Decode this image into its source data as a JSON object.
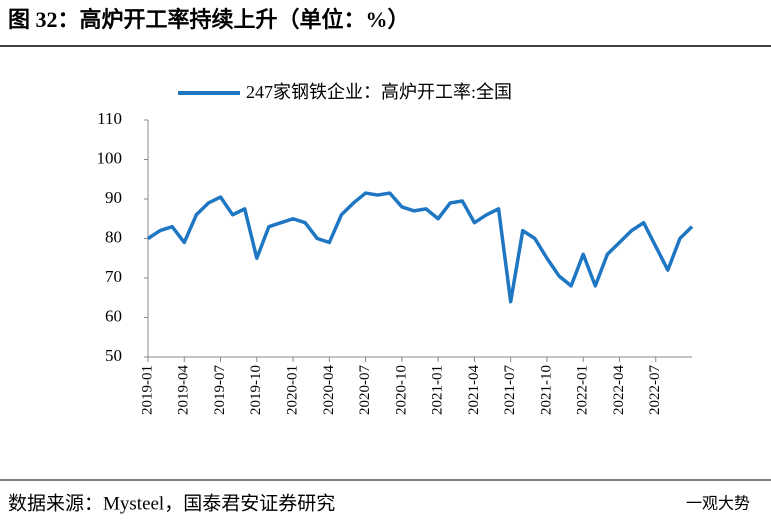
{
  "header": {
    "title": "图 32：高炉开工率持续上升（单位：%）"
  },
  "chart_data": {
    "type": "line",
    "x": [
      "2019-01",
      null,
      null,
      "2019-04",
      null,
      null,
      "2019-07",
      null,
      null,
      "2019-10",
      null,
      null,
      "2020-01",
      null,
      null,
      "2020-04",
      null,
      null,
      "2020-07",
      null,
      null,
      "2020-10",
      null,
      null,
      "2021-01",
      null,
      null,
      "2021-04",
      null,
      null,
      "2021-07",
      null,
      null,
      "2021-10",
      null,
      null,
      "2022-01",
      null,
      null,
      "2022-04",
      null,
      null,
      "2022-07",
      null,
      null,
      null
    ],
    "series": [
      {
        "name": "247家钢铁企业：高炉开工率:全国",
        "color": "#1f77c4",
        "values": [
          80,
          82,
          83,
          79,
          86,
          89,
          90.5,
          86,
          87.5,
          75,
          83,
          84,
          85,
          84,
          80,
          79,
          86,
          89,
          91.5,
          91,
          91.5,
          88,
          87,
          87.5,
          85,
          89,
          89.5,
          84,
          86,
          87.5,
          64,
          82,
          80,
          75,
          70.5,
          68,
          76,
          68,
          76,
          79,
          82,
          84,
          78,
          72,
          80,
          83
        ]
      }
    ],
    "ylim": [
      50,
      110
    ],
    "yticks": [
      50,
      60,
      70,
      80,
      90,
      100,
      110
    ],
    "grid": false,
    "legend": "top"
  },
  "footer": {
    "source": "数据来源：Mysteel，国泰君安证券研究",
    "watermark": "一观大势"
  }
}
